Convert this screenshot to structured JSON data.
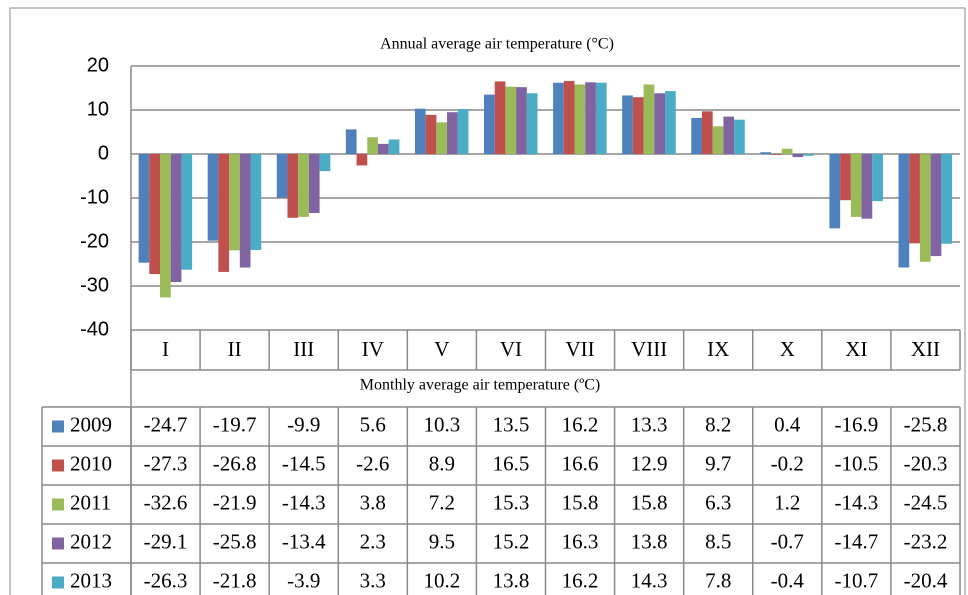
{
  "chart_data": {
    "type": "bar",
    "title": "Annual  average air temperature (°C)",
    "x_label": "Monthly average air temperature (ºC)",
    "categories": [
      "I",
      "II",
      "III",
      "IV",
      "V",
      "VI",
      "VII",
      "VIII",
      "IX",
      "X",
      "XI",
      "XII"
    ],
    "series": [
      {
        "name": "2009",
        "color": "#4f81bd",
        "values": [
          -24.7,
          -19.7,
          -9.9,
          5.6,
          10.3,
          13.5,
          16.2,
          13.3,
          8.2,
          0.4,
          -16.9,
          -25.8
        ]
      },
      {
        "name": "2010",
        "color": "#c0504d",
        "values": [
          -27.3,
          -26.8,
          -14.5,
          -2.6,
          8.9,
          16.5,
          16.6,
          12.9,
          9.7,
          -0.2,
          -10.5,
          -20.3
        ]
      },
      {
        "name": "2011",
        "color": "#9bbb59",
        "values": [
          -32.6,
          -21.9,
          -14.3,
          3.8,
          7.2,
          15.3,
          15.8,
          15.8,
          6.3,
          1.2,
          -14.3,
          -24.5
        ]
      },
      {
        "name": "2012",
        "color": "#8064a2",
        "values": [
          -29.1,
          -25.8,
          -13.4,
          2.3,
          9.5,
          15.2,
          16.3,
          13.8,
          8.5,
          -0.7,
          -14.7,
          -23.2
        ]
      },
      {
        "name": "2013",
        "color": "#4bacc6",
        "values": [
          -26.3,
          -21.8,
          -3.9,
          3.3,
          10.2,
          13.8,
          16.2,
          14.3,
          7.8,
          -0.4,
          -10.7,
          -20.4
        ]
      }
    ],
    "ylim": [
      -40,
      20
    ],
    "yticks": [
      -40,
      -30,
      -20,
      -10,
      0,
      10,
      20
    ],
    "grid": true
  }
}
